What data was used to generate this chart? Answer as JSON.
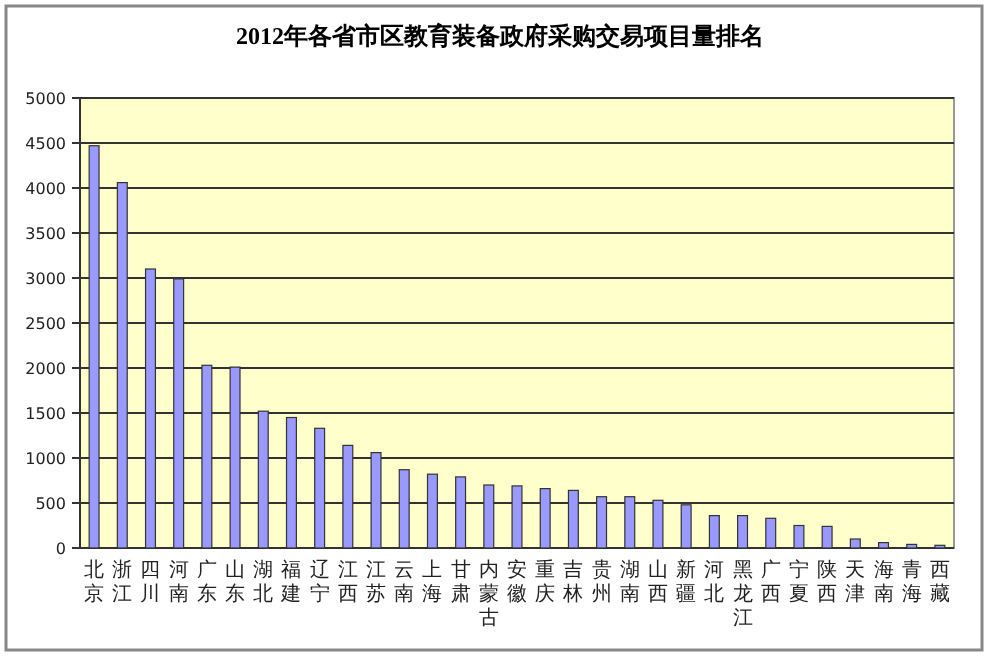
{
  "chart_data": {
    "type": "bar",
    "title": "2012年各省市区教育装备政府采购交易项目量排名",
    "categories": [
      "北京",
      "浙江",
      "四川",
      "河南",
      "广东",
      "山东",
      "湖北",
      "福建",
      "辽宁",
      "江西",
      "江苏",
      "云南",
      "上海",
      "甘肃",
      "内蒙古",
      "安徽",
      "重庆",
      "吉林",
      "贵州",
      "湖南",
      "山西",
      "新疆",
      "河北",
      "黑龙江",
      "广西",
      "宁夏",
      "陕西",
      "天津",
      "海南",
      "青海",
      "西藏"
    ],
    "values": [
      4470,
      4060,
      3100,
      2990,
      2030,
      2010,
      1520,
      1450,
      1330,
      1140,
      1060,
      870,
      820,
      790,
      700,
      690,
      660,
      640,
      570,
      570,
      530,
      480,
      360,
      360,
      330,
      250,
      240,
      100,
      60,
      40,
      30
    ],
    "color": "#9999ff",
    "ylim": [
      0,
      5000
    ],
    "yticks": [
      0,
      500,
      1000,
      1500,
      2000,
      2500,
      3000,
      3500,
      4000,
      4500,
      5000
    ],
    "grid": "y"
  }
}
